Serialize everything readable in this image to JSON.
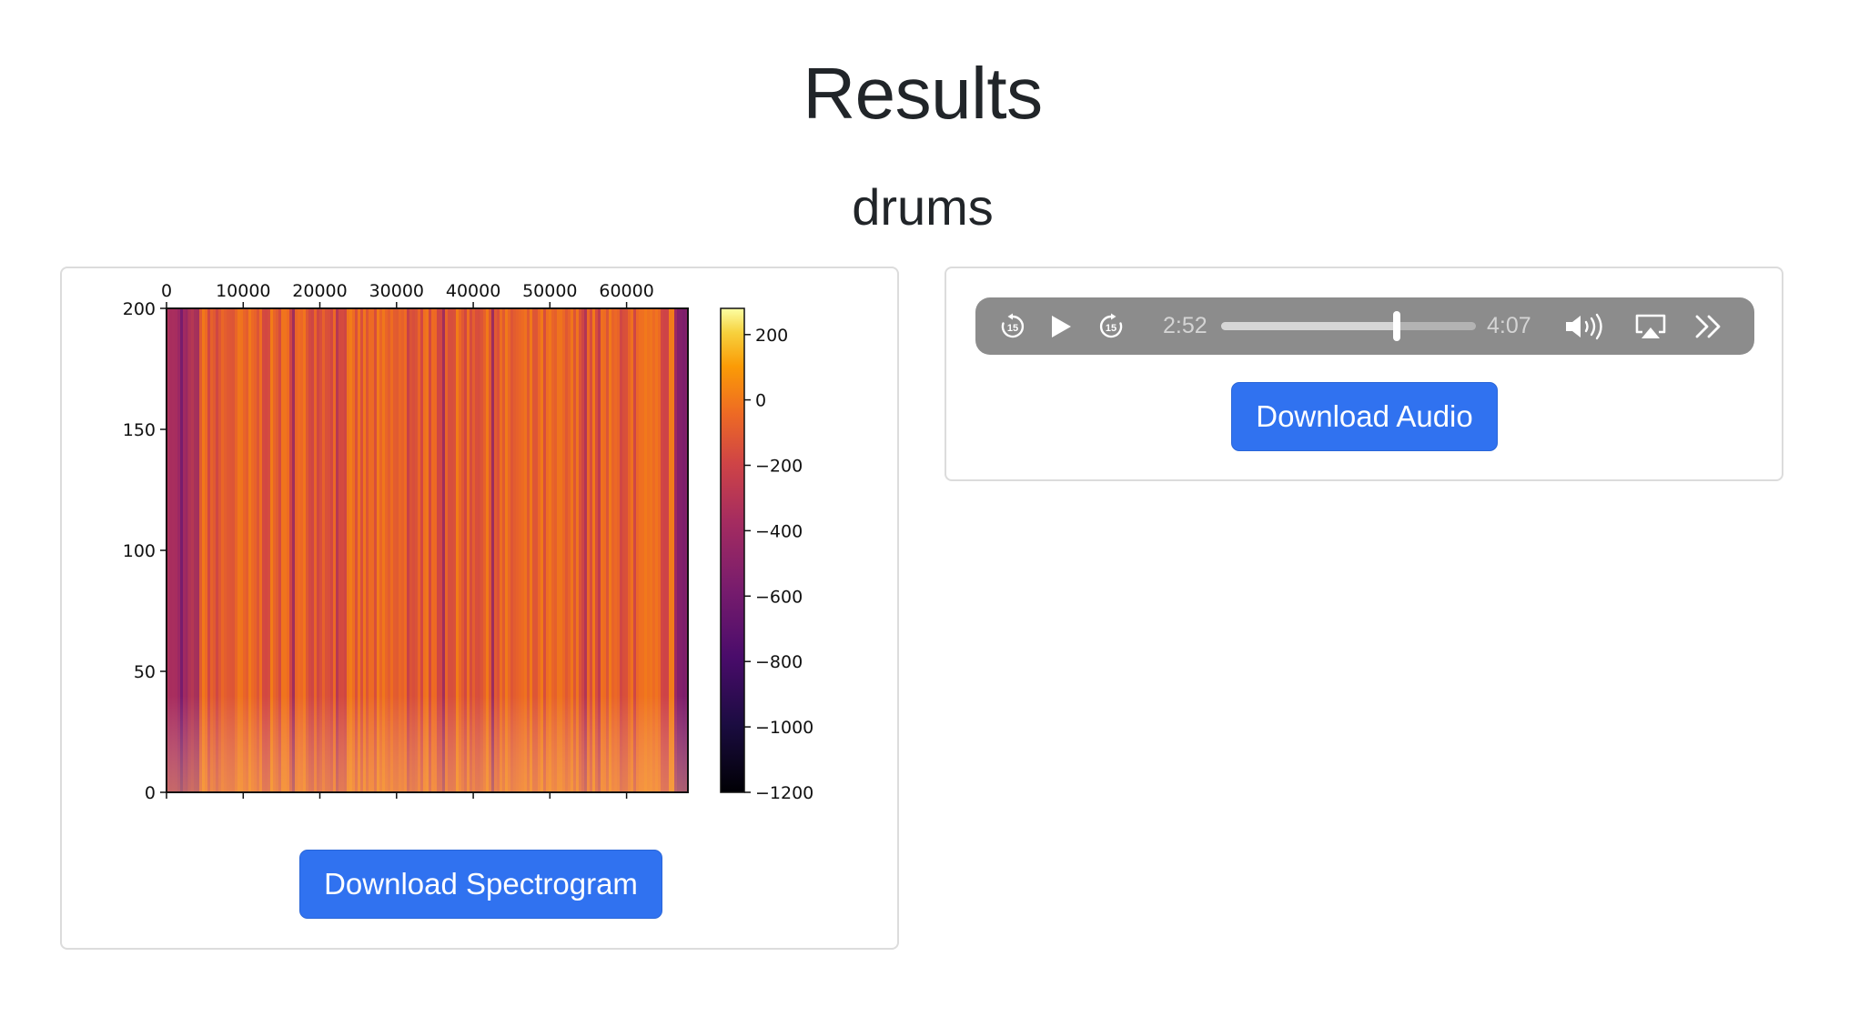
{
  "page": {
    "title": "Results"
  },
  "section": {
    "title": "drums"
  },
  "spectrogram": {
    "download_label": "Download Spectrogram",
    "chart_data": {
      "type": "heatmap",
      "x_ticks": [
        "0",
        "10000",
        "20000",
        "30000",
        "40000",
        "50000",
        "60000"
      ],
      "x_tick_values": [
        0,
        10000,
        20000,
        30000,
        40000,
        50000,
        60000
      ],
      "xlim": [
        0,
        68000
      ],
      "y_ticks": [
        "0",
        "50",
        "100",
        "150",
        "200"
      ],
      "y_tick_values": [
        0,
        50,
        100,
        150,
        200
      ],
      "ylim": [
        0,
        200
      ],
      "colorbar_ticks": [
        "200",
        "0",
        "−200",
        "−400",
        "−600",
        "−800",
        "−1000",
        "−1200"
      ],
      "colorbar_values": [
        200,
        0,
        -200,
        -400,
        -600,
        -800,
        -1000,
        -1200
      ],
      "colorbar_range": [
        -1200,
        280
      ],
      "colormap": "inferno",
      "x_axis_position": "top"
    }
  },
  "audio": {
    "download_label": "Download Audio",
    "player": {
      "current_time": "2:52",
      "duration": "4:07",
      "progress": 0.69,
      "skip_seconds": "15",
      "background_color": "#8c8c8c",
      "icons": [
        "skip-back-15-icon",
        "play-icon",
        "skip-forward-15-icon",
        "volume-icon",
        "airplay-icon",
        "more-icon"
      ]
    }
  }
}
